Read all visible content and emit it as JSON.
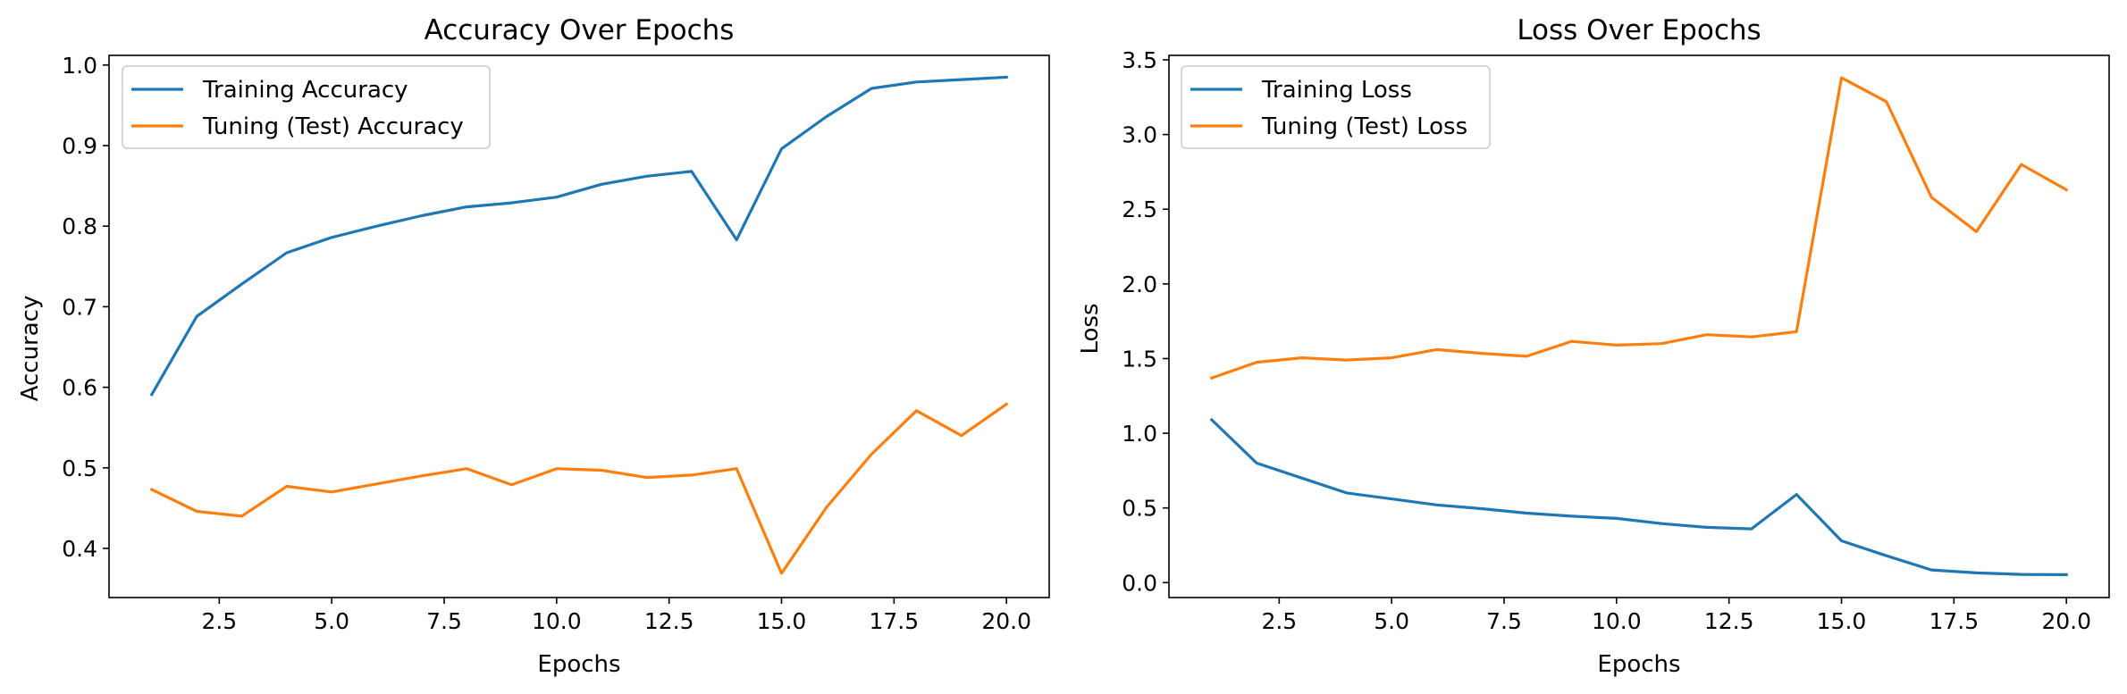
{
  "chart_data": [
    {
      "type": "line",
      "title": "Accuracy Over Epochs",
      "xlabel": "Epochs",
      "ylabel": "Accuracy",
      "xlim": [
        0.05,
        20.95
      ],
      "ylim": [
        0.339,
        1.012
      ],
      "xticks": [
        2.5,
        5.0,
        7.5,
        10.0,
        12.5,
        15.0,
        17.5,
        20.0
      ],
      "xtick_labels": [
        "2.5",
        "5.0",
        "7.5",
        "10.0",
        "12.5",
        "15.0",
        "17.5",
        "20.0"
      ],
      "yticks": [
        0.4,
        0.5,
        0.6,
        0.7,
        0.8,
        0.9,
        1.0
      ],
      "ytick_labels": [
        "0.4",
        "0.5",
        "0.6",
        "0.7",
        "0.8",
        "0.9",
        "1.0"
      ],
      "legend_position": "top-left",
      "grid": false,
      "x": [
        1,
        2,
        3,
        4,
        5,
        6,
        7,
        8,
        9,
        10,
        11,
        12,
        13,
        14,
        15,
        16,
        17,
        18,
        19,
        20
      ],
      "series": [
        {
          "name": "Training Accuracy",
          "color": "#1f77b4",
          "values": [
            0.591,
            0.688,
            0.728,
            0.767,
            0.786,
            0.8,
            0.813,
            0.824,
            0.829,
            0.836,
            0.852,
            0.862,
            0.868,
            0.783,
            0.896,
            0.936,
            0.971,
            0.979,
            0.982,
            0.985
          ]
        },
        {
          "name": "Tuning (Test) Accuracy",
          "color": "#ff7f0e",
          "values": [
            0.473,
            0.446,
            0.44,
            0.477,
            0.47,
            0.48,
            0.49,
            0.499,
            0.479,
            0.499,
            0.497,
            0.488,
            0.491,
            0.499,
            0.369,
            0.451,
            0.517,
            0.571,
            0.54,
            0.579
          ]
        }
      ]
    },
    {
      "type": "line",
      "title": "Loss Over Epochs",
      "xlabel": "Epochs",
      "ylabel": "Loss",
      "xlim": [
        0.05,
        20.95
      ],
      "ylim": [
        -0.1,
        3.53
      ],
      "xticks": [
        2.5,
        5.0,
        7.5,
        10.0,
        12.5,
        15.0,
        17.5,
        20.0
      ],
      "xtick_labels": [
        "2.5",
        "5.0",
        "7.5",
        "10.0",
        "12.5",
        "15.0",
        "17.5",
        "20.0"
      ],
      "yticks": [
        0.0,
        0.5,
        1.0,
        1.5,
        2.0,
        2.5,
        3.0,
        3.5
      ],
      "ytick_labels": [
        "0.0",
        "0.5",
        "1.0",
        "1.5",
        "2.0",
        "2.5",
        "3.0",
        "3.5"
      ],
      "legend_position": "top-left",
      "grid": false,
      "x": [
        1,
        2,
        3,
        4,
        5,
        6,
        7,
        8,
        9,
        10,
        11,
        12,
        13,
        14,
        15,
        16,
        17,
        18,
        19,
        20
      ],
      "series": [
        {
          "name": "Training Loss",
          "color": "#1f77b4",
          "values": [
            1.09,
            0.8,
            0.7,
            0.6,
            0.56,
            0.52,
            0.495,
            0.465,
            0.445,
            0.43,
            0.395,
            0.37,
            0.36,
            0.59,
            0.28,
            0.18,
            0.085,
            0.065,
            0.055,
            0.053
          ]
        },
        {
          "name": "Tuning (Test) Loss",
          "color": "#ff7f0e",
          "values": [
            1.37,
            1.475,
            1.505,
            1.49,
            1.505,
            1.56,
            1.535,
            1.515,
            1.615,
            1.59,
            1.6,
            1.66,
            1.645,
            1.68,
            3.38,
            3.22,
            2.58,
            2.35,
            2.8,
            2.63
          ]
        }
      ]
    }
  ]
}
